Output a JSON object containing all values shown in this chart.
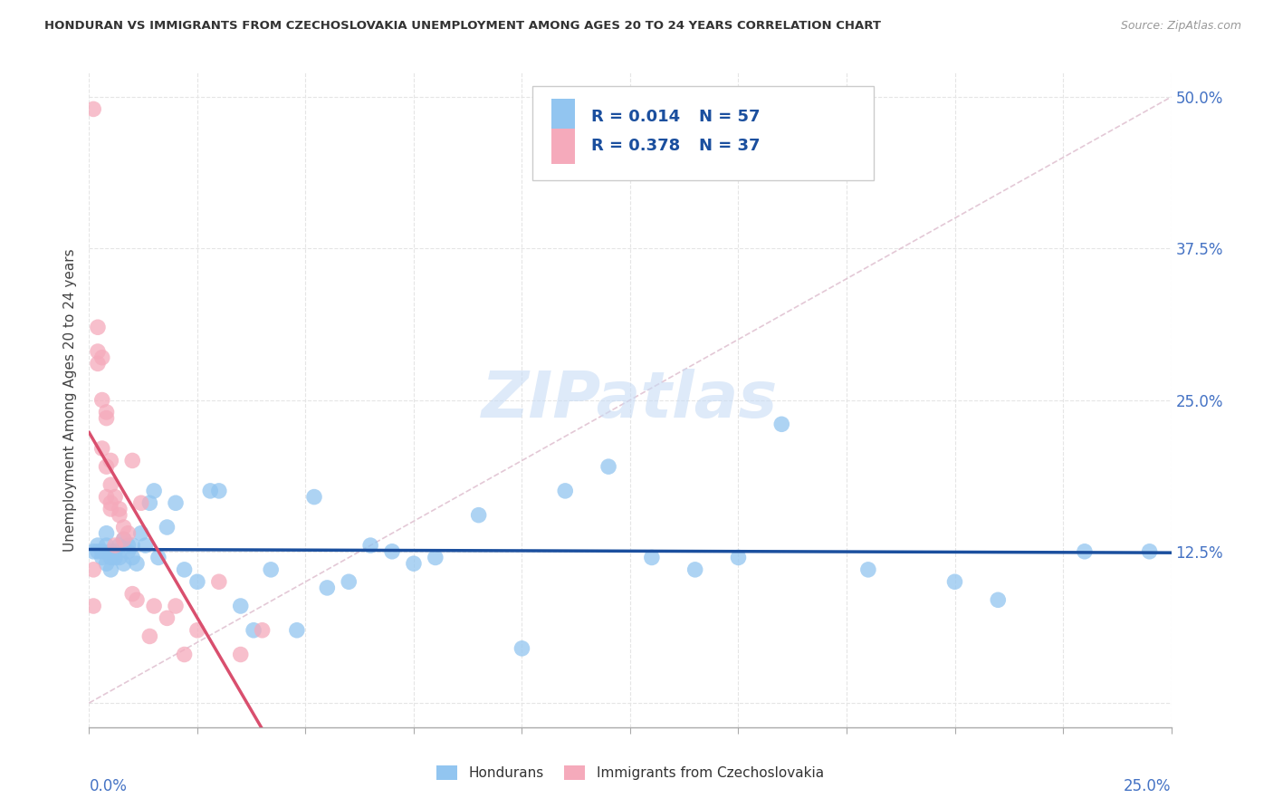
{
  "title": "HONDURAN VS IMMIGRANTS FROM CZECHOSLOVAKIA UNEMPLOYMENT AMONG AGES 20 TO 24 YEARS CORRELATION CHART",
  "source": "Source: ZipAtlas.com",
  "ylabel": "Unemployment Among Ages 20 to 24 years",
  "ytick_labels": [
    "",
    "12.5%",
    "25.0%",
    "37.5%",
    "50.0%"
  ],
  "ytick_values": [
    0,
    0.125,
    0.25,
    0.375,
    0.5
  ],
  "xlim": [
    0,
    0.25
  ],
  "ylim": [
    -0.02,
    0.52
  ],
  "legend_blue_r": "R = 0.014",
  "legend_blue_n": "N = 57",
  "legend_pink_r": "R = 0.378",
  "legend_pink_n": "N = 37",
  "legend_label_blue": "Hondurans",
  "legend_label_pink": "Immigrants from Czechoslovakia",
  "blue_color": "#92C5F0",
  "pink_color": "#F5AABB",
  "trendline_blue_color": "#1B4F9E",
  "trendline_pink_color": "#D94F6E",
  "diag_line_color": "#DDBBCC",
  "watermark_color": "#C8DCF5",
  "blue_scatter_x": [
    0.001,
    0.002,
    0.002,
    0.003,
    0.003,
    0.004,
    0.004,
    0.004,
    0.005,
    0.005,
    0.005,
    0.006,
    0.006,
    0.007,
    0.007,
    0.008,
    0.008,
    0.009,
    0.009,
    0.01,
    0.01,
    0.011,
    0.012,
    0.013,
    0.014,
    0.015,
    0.016,
    0.018,
    0.02,
    0.022,
    0.025,
    0.028,
    0.03,
    0.035,
    0.038,
    0.042,
    0.048,
    0.052,
    0.055,
    0.06,
    0.065,
    0.07,
    0.075,
    0.08,
    0.09,
    0.1,
    0.11,
    0.12,
    0.13,
    0.14,
    0.15,
    0.16,
    0.18,
    0.2,
    0.21,
    0.23,
    0.245
  ],
  "blue_scatter_y": [
    0.125,
    0.125,
    0.13,
    0.12,
    0.125,
    0.115,
    0.13,
    0.14,
    0.125,
    0.12,
    0.11,
    0.12,
    0.125,
    0.13,
    0.12,
    0.115,
    0.135,
    0.125,
    0.13,
    0.12,
    0.13,
    0.115,
    0.14,
    0.13,
    0.165,
    0.175,
    0.12,
    0.145,
    0.165,
    0.11,
    0.1,
    0.175,
    0.175,
    0.08,
    0.06,
    0.11,
    0.06,
    0.17,
    0.095,
    0.1,
    0.13,
    0.125,
    0.115,
    0.12,
    0.155,
    0.045,
    0.175,
    0.195,
    0.12,
    0.11,
    0.12,
    0.23,
    0.11,
    0.1,
    0.085,
    0.125,
    0.125
  ],
  "pink_scatter_x": [
    0.001,
    0.001,
    0.001,
    0.002,
    0.002,
    0.002,
    0.003,
    0.003,
    0.003,
    0.004,
    0.004,
    0.004,
    0.004,
    0.005,
    0.005,
    0.005,
    0.005,
    0.006,
    0.006,
    0.007,
    0.007,
    0.008,
    0.008,
    0.009,
    0.01,
    0.01,
    0.011,
    0.012,
    0.014,
    0.015,
    0.018,
    0.02,
    0.022,
    0.025,
    0.03,
    0.035,
    0.04
  ],
  "pink_scatter_y": [
    0.49,
    0.11,
    0.08,
    0.31,
    0.29,
    0.28,
    0.285,
    0.25,
    0.21,
    0.24,
    0.235,
    0.195,
    0.17,
    0.165,
    0.2,
    0.18,
    0.16,
    0.17,
    0.13,
    0.16,
    0.155,
    0.145,
    0.135,
    0.14,
    0.2,
    0.09,
    0.085,
    0.165,
    0.055,
    0.08,
    0.07,
    0.08,
    0.04,
    0.06,
    0.1,
    0.04,
    0.06
  ],
  "diag_line_x": [
    0.0,
    0.25
  ],
  "diag_line_y": [
    0.0,
    0.5
  ]
}
